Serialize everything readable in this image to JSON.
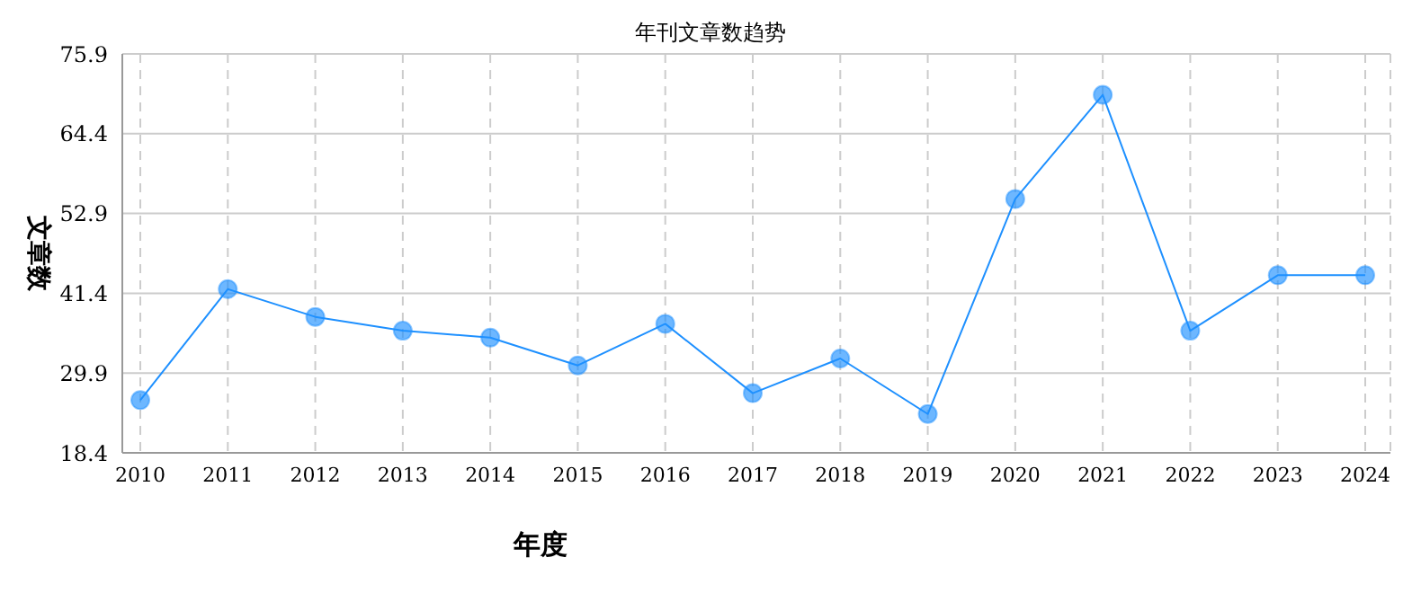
{
  "chart_data": {
    "type": "line",
    "title": "年刊文章数趋势",
    "xlabel": "年度",
    "ylabel": "文章数",
    "categories": [
      "2010",
      "2011",
      "2012",
      "2013",
      "2014",
      "2015",
      "2016",
      "2017",
      "2018",
      "2019",
      "2020",
      "2021",
      "2022",
      "2023",
      "2024"
    ],
    "series": [
      {
        "color": "#1e90ff",
        "values": [
          26,
          42,
          38,
          36,
          35,
          31,
          37,
          27,
          32,
          24,
          55,
          70,
          36,
          44,
          44
        ]
      }
    ],
    "ylim": [
      18.4,
      75.9
    ],
    "yticks": [
      18.4,
      29.9,
      41.4,
      52.9,
      64.4,
      75.9
    ],
    "grid": true,
    "marker": "circle",
    "line_style": "solid",
    "legend": false
  }
}
